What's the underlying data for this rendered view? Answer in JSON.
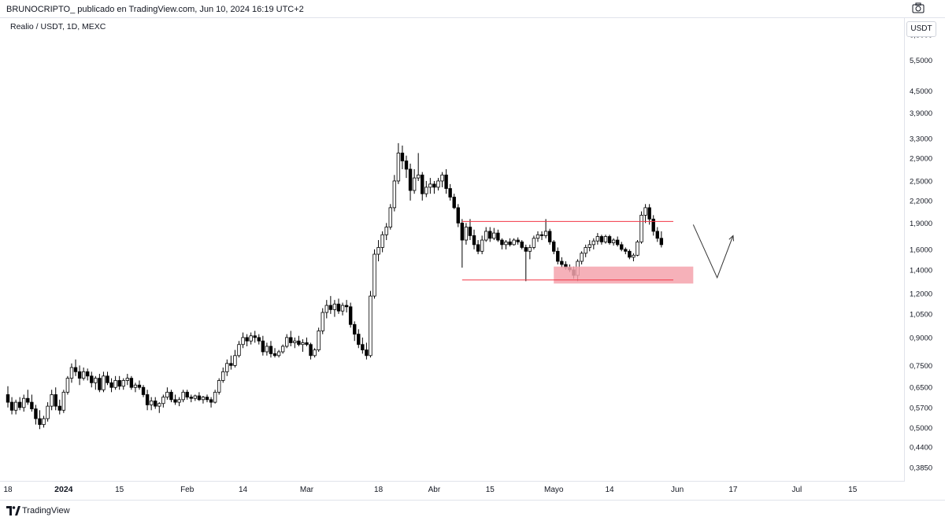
{
  "header": {
    "published_text": "BRUNOCRIPTO_ publicado en TradingView.com, Jun 10, 2024 16:19 UTC+2"
  },
  "symbol": {
    "label": "Realio / USDT, 1D, MEXC"
  },
  "price_axis": {
    "currency": "USDT"
  },
  "footer": {
    "brand": "TradingView"
  },
  "colors": {
    "up_candle": "#ffffff",
    "down_candle": "#000000",
    "candle_border": "#000000",
    "range_line": "#f23645",
    "demand_zone": "#f5a3ad",
    "arrow": "#333333",
    "grid": "#e0e3eb"
  },
  "chart_data": {
    "type": "candlestick",
    "title": "Realio / USDT, 1D, MEXC",
    "scale": "log",
    "ylim": [
      0.355,
      7.2
    ],
    "y_ticks": [
      "6,5000",
      "5,5000",
      "4,5000",
      "3,9000",
      "3,3000",
      "2,9000",
      "2,5000",
      "2,2000",
      "1,9000",
      "1,6000",
      "1,4000",
      "1,2000",
      "1,0500",
      "0,9000",
      "0,7500",
      "0,6500",
      "0,5700",
      "0,5000",
      "0,4400",
      "0,3850"
    ],
    "y_tick_values": [
      6.5,
      5.5,
      4.5,
      3.9,
      3.3,
      2.9,
      2.5,
      2.2,
      1.9,
      1.6,
      1.4,
      1.2,
      1.05,
      0.9,
      0.75,
      0.65,
      0.57,
      0.5,
      0.44,
      0.385
    ],
    "x_ticks": [
      "18",
      "2024",
      "15",
      "Feb",
      "14",
      "Mar",
      "18",
      "Abr",
      "15",
      "Mayo",
      "14",
      "Jun",
      "17",
      "Jul",
      "15"
    ],
    "x_tick_days": [
      0,
      14,
      28,
      45,
      59,
      75,
      93,
      107,
      121,
      137,
      151,
      168,
      182,
      198,
      212
    ],
    "candles_start": "Dec 18 2023",
    "ohlc": [
      [
        0.62,
        0.655,
        0.57,
        0.59
      ],
      [
        0.59,
        0.61,
        0.545,
        0.56
      ],
      [
        0.56,
        0.6,
        0.545,
        0.59
      ],
      [
        0.59,
        0.61,
        0.56,
        0.57
      ],
      [
        0.57,
        0.62,
        0.555,
        0.605
      ],
      [
        0.605,
        0.64,
        0.58,
        0.59
      ],
      [
        0.59,
        0.62,
        0.555,
        0.565
      ],
      [
        0.565,
        0.58,
        0.51,
        0.53
      ],
      [
        0.53,
        0.56,
        0.495,
        0.51
      ],
      [
        0.51,
        0.54,
        0.5,
        0.53
      ],
      [
        0.53,
        0.59,
        0.52,
        0.575
      ],
      [
        0.575,
        0.64,
        0.56,
        0.62
      ],
      [
        0.62,
        0.65,
        0.56,
        0.575
      ],
      [
        0.575,
        0.6,
        0.545,
        0.56
      ],
      [
        0.56,
        0.64,
        0.55,
        0.63
      ],
      [
        0.63,
        0.7,
        0.62,
        0.69
      ],
      [
        0.69,
        0.76,
        0.67,
        0.74
      ],
      [
        0.74,
        0.78,
        0.7,
        0.72
      ],
      [
        0.72,
        0.75,
        0.66,
        0.69
      ],
      [
        0.69,
        0.74,
        0.68,
        0.72
      ],
      [
        0.72,
        0.735,
        0.68,
        0.7
      ],
      [
        0.7,
        0.72,
        0.65,
        0.67
      ],
      [
        0.67,
        0.7,
        0.64,
        0.69
      ],
      [
        0.69,
        0.71,
        0.63,
        0.64
      ],
      [
        0.64,
        0.72,
        0.63,
        0.7
      ],
      [
        0.7,
        0.72,
        0.66,
        0.67
      ],
      [
        0.67,
        0.69,
        0.63,
        0.65
      ],
      [
        0.65,
        0.7,
        0.64,
        0.68
      ],
      [
        0.68,
        0.7,
        0.64,
        0.655
      ],
      [
        0.655,
        0.69,
        0.64,
        0.68
      ],
      [
        0.68,
        0.71,
        0.66,
        0.69
      ],
      [
        0.69,
        0.7,
        0.64,
        0.65
      ],
      [
        0.65,
        0.67,
        0.63,
        0.66
      ],
      [
        0.66,
        0.68,
        0.64,
        0.65
      ],
      [
        0.65,
        0.66,
        0.61,
        0.62
      ],
      [
        0.62,
        0.64,
        0.56,
        0.58
      ],
      [
        0.58,
        0.61,
        0.56,
        0.595
      ],
      [
        0.595,
        0.61,
        0.565,
        0.575
      ],
      [
        0.575,
        0.59,
        0.55,
        0.585
      ],
      [
        0.585,
        0.62,
        0.57,
        0.61
      ],
      [
        0.61,
        0.65,
        0.6,
        0.63
      ],
      [
        0.63,
        0.64,
        0.59,
        0.6
      ],
      [
        0.6,
        0.62,
        0.58,
        0.59
      ],
      [
        0.59,
        0.61,
        0.575,
        0.6
      ],
      [
        0.6,
        0.64,
        0.59,
        0.63
      ],
      [
        0.63,
        0.64,
        0.6,
        0.61
      ],
      [
        0.61,
        0.62,
        0.59,
        0.605
      ],
      [
        0.605,
        0.62,
        0.595,
        0.615
      ],
      [
        0.615,
        0.63,
        0.595,
        0.6
      ],
      [
        0.6,
        0.615,
        0.585,
        0.61
      ],
      [
        0.61,
        0.62,
        0.59,
        0.6
      ],
      [
        0.6,
        0.61,
        0.57,
        0.59
      ],
      [
        0.59,
        0.64,
        0.585,
        0.63
      ],
      [
        0.63,
        0.69,
        0.62,
        0.68
      ],
      [
        0.68,
        0.74,
        0.67,
        0.72
      ],
      [
        0.72,
        0.78,
        0.7,
        0.76
      ],
      [
        0.76,
        0.8,
        0.73,
        0.75
      ],
      [
        0.75,
        0.83,
        0.74,
        0.8
      ],
      [
        0.8,
        0.88,
        0.79,
        0.86
      ],
      [
        0.86,
        0.93,
        0.84,
        0.9
      ],
      [
        0.9,
        0.92,
        0.85,
        0.88
      ],
      [
        0.88,
        0.93,
        0.86,
        0.91
      ],
      [
        0.91,
        0.94,
        0.87,
        0.9
      ],
      [
        0.9,
        0.92,
        0.86,
        0.88
      ],
      [
        0.88,
        0.91,
        0.8,
        0.82
      ],
      [
        0.82,
        0.87,
        0.8,
        0.85
      ],
      [
        0.85,
        0.88,
        0.79,
        0.81
      ],
      [
        0.81,
        0.84,
        0.79,
        0.8
      ],
      [
        0.8,
        0.83,
        0.79,
        0.82
      ],
      [
        0.82,
        0.86,
        0.81,
        0.85
      ],
      [
        0.85,
        0.92,
        0.84,
        0.9
      ],
      [
        0.9,
        0.94,
        0.85,
        0.87
      ],
      [
        0.87,
        0.9,
        0.84,
        0.88
      ],
      [
        0.88,
        0.91,
        0.85,
        0.86
      ],
      [
        0.86,
        0.89,
        0.82,
        0.87
      ],
      [
        0.87,
        0.9,
        0.85,
        0.86
      ],
      [
        0.86,
        0.87,
        0.78,
        0.8
      ],
      [
        0.8,
        0.84,
        0.79,
        0.83
      ],
      [
        0.83,
        0.96,
        0.82,
        0.94
      ],
      [
        0.94,
        1.09,
        0.92,
        1.06
      ],
      [
        1.06,
        1.15,
        1.02,
        1.11
      ],
      [
        1.11,
        1.18,
        1.05,
        1.08
      ],
      [
        1.08,
        1.15,
        1.03,
        1.12
      ],
      [
        1.12,
        1.16,
        1.05,
        1.07
      ],
      [
        1.07,
        1.13,
        1.04,
        1.11
      ],
      [
        1.11,
        1.15,
        1.06,
        1.1
      ],
      [
        1.1,
        1.13,
        0.96,
        0.98
      ],
      [
        0.98,
        1.0,
        0.88,
        0.92
      ],
      [
        0.92,
        0.95,
        0.84,
        0.86
      ],
      [
        0.86,
        0.9,
        0.81,
        0.83
      ],
      [
        0.83,
        0.87,
        0.78,
        0.8
      ],
      [
        0.8,
        1.22,
        0.79,
        1.18
      ],
      [
        1.18,
        1.6,
        1.16,
        1.55
      ],
      [
        1.55,
        1.7,
        1.48,
        1.62
      ],
      [
        1.62,
        1.8,
        1.57,
        1.76
      ],
      [
        1.76,
        1.9,
        1.7,
        1.85
      ],
      [
        1.85,
        2.15,
        1.82,
        2.1
      ],
      [
        2.1,
        2.6,
        2.05,
        2.5
      ],
      [
        2.5,
        3.2,
        2.45,
        3.0
      ],
      [
        3.0,
        3.15,
        2.7,
        2.85
      ],
      [
        2.85,
        2.95,
        2.55,
        2.7
      ],
      [
        2.7,
        2.8,
        2.2,
        2.35
      ],
      [
        2.35,
        2.7,
        2.3,
        2.55
      ],
      [
        2.55,
        3.0,
        2.5,
        2.6
      ],
      [
        2.6,
        2.65,
        2.2,
        2.3
      ],
      [
        2.3,
        2.5,
        2.25,
        2.4
      ],
      [
        2.4,
        2.55,
        2.3,
        2.45
      ],
      [
        2.45,
        2.5,
        2.3,
        2.4
      ],
      [
        2.4,
        2.55,
        2.35,
        2.5
      ],
      [
        2.5,
        2.65,
        2.4,
        2.6
      ],
      [
        2.6,
        2.7,
        2.3,
        2.38
      ],
      [
        2.38,
        2.45,
        2.2,
        2.25
      ],
      [
        2.25,
        2.3,
        2.08,
        2.1
      ],
      [
        2.1,
        2.15,
        1.85,
        1.9
      ],
      [
        1.9,
        1.95,
        1.42,
        1.7
      ],
      [
        1.7,
        1.9,
        1.65,
        1.85
      ],
      [
        1.85,
        1.95,
        1.7,
        1.75
      ],
      [
        1.75,
        1.82,
        1.6,
        1.65
      ],
      [
        1.65,
        1.7,
        1.55,
        1.58
      ],
      [
        1.58,
        1.75,
        1.55,
        1.7
      ],
      [
        1.7,
        1.85,
        1.68,
        1.8
      ],
      [
        1.8,
        1.85,
        1.68,
        1.72
      ],
      [
        1.72,
        1.84,
        1.7,
        1.78
      ],
      [
        1.78,
        1.82,
        1.68,
        1.7
      ],
      [
        1.7,
        1.72,
        1.6,
        1.65
      ],
      [
        1.65,
        1.7,
        1.6,
        1.68
      ],
      [
        1.68,
        1.72,
        1.63,
        1.65
      ],
      [
        1.65,
        1.72,
        1.64,
        1.7
      ],
      [
        1.7,
        1.73,
        1.65,
        1.68
      ],
      [
        1.68,
        1.7,
        1.6,
        1.62
      ],
      [
        1.62,
        1.65,
        1.3,
        1.58
      ],
      [
        1.58,
        1.65,
        1.5,
        1.62
      ],
      [
        1.62,
        1.75,
        1.6,
        1.72
      ],
      [
        1.72,
        1.8,
        1.68,
        1.76
      ],
      [
        1.76,
        1.8,
        1.7,
        1.75
      ],
      [
        1.75,
        1.95,
        1.72,
        1.8
      ],
      [
        1.8,
        1.83,
        1.65,
        1.68
      ],
      [
        1.68,
        1.7,
        1.55,
        1.58
      ],
      [
        1.58,
        1.62,
        1.45,
        1.48
      ],
      [
        1.48,
        1.52,
        1.42,
        1.45
      ],
      [
        1.45,
        1.48,
        1.4,
        1.42
      ],
      [
        1.42,
        1.45,
        1.38,
        1.4
      ],
      [
        1.4,
        1.43,
        1.32,
        1.35
      ],
      [
        1.35,
        1.5,
        1.3,
        1.48
      ],
      [
        1.48,
        1.58,
        1.45,
        1.56
      ],
      [
        1.56,
        1.65,
        1.52,
        1.62
      ],
      [
        1.62,
        1.7,
        1.58,
        1.65
      ],
      [
        1.65,
        1.72,
        1.6,
        1.69
      ],
      [
        1.69,
        1.78,
        1.65,
        1.74
      ],
      [
        1.74,
        1.76,
        1.65,
        1.68
      ],
      [
        1.68,
        1.76,
        1.66,
        1.74
      ],
      [
        1.74,
        1.76,
        1.65,
        1.67
      ],
      [
        1.67,
        1.72,
        1.64,
        1.7
      ],
      [
        1.7,
        1.74,
        1.63,
        1.65
      ],
      [
        1.65,
        1.68,
        1.58,
        1.6
      ],
      [
        1.6,
        1.62,
        1.55,
        1.58
      ],
      [
        1.58,
        1.6,
        1.5,
        1.52
      ],
      [
        1.52,
        1.56,
        1.48,
        1.54
      ],
      [
        1.54,
        1.7,
        1.53,
        1.68
      ],
      [
        1.68,
        2.05,
        1.66,
        2.0
      ],
      [
        2.0,
        2.15,
        1.9,
        2.1
      ],
      [
        2.1,
        2.15,
        1.88,
        1.95
      ],
      [
        1.95,
        2.0,
        1.75,
        1.8
      ],
      [
        1.8,
        1.85,
        1.68,
        1.72
      ],
      [
        1.72,
        1.8,
        1.62,
        1.65
      ]
    ],
    "annotations": {
      "range_high": 1.92,
      "range_low": 1.31,
      "range_days": [
        114,
        167
      ],
      "demand_zone": [
        1.28,
        1.43
      ],
      "demand_zone_days": [
        137,
        172
      ],
      "arrow_path": [
        [
          172,
          1.88
        ],
        [
          178,
          1.33
        ],
        [
          182,
          1.75
        ]
      ]
    }
  }
}
